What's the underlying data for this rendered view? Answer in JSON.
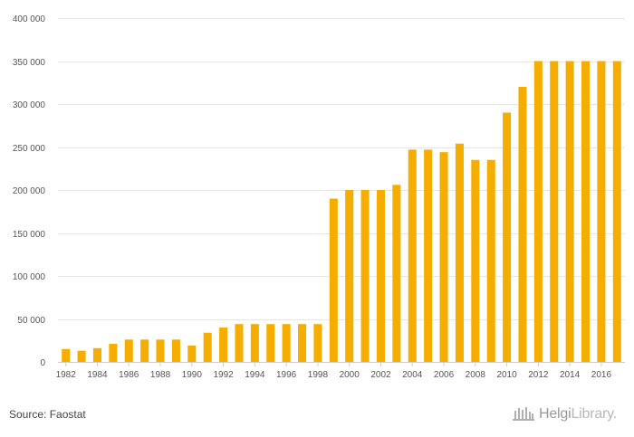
{
  "chart_data": {
    "type": "bar",
    "title": "",
    "xlabel": "",
    "ylabel": "",
    "ylim": [
      0,
      400000
    ],
    "yticks": [
      0,
      50000,
      100000,
      150000,
      200000,
      250000,
      300000,
      350000,
      400000
    ],
    "ytick_labels": [
      "0",
      "50 000",
      "100 000",
      "150 000",
      "200 000",
      "250 000",
      "300 000",
      "350 000",
      "400 000"
    ],
    "categories": [
      "1982",
      "1983",
      "1984",
      "1985",
      "1986",
      "1987",
      "1988",
      "1989",
      "1990",
      "1991",
      "1992",
      "1993",
      "1994",
      "1995",
      "1996",
      "1997",
      "1998",
      "1999",
      "2000",
      "2001",
      "2002",
      "2003",
      "2004",
      "2005",
      "2006",
      "2007",
      "2008",
      "2009",
      "2010",
      "2011",
      "2012",
      "2013",
      "2014",
      "2015",
      "2016",
      "2017"
    ],
    "xtick_labels": [
      "1982",
      "1984",
      "1986",
      "1988",
      "1990",
      "1992",
      "1994",
      "1996",
      "1998",
      "2000",
      "2002",
      "2004",
      "2006",
      "2008",
      "2010",
      "2012",
      "2014",
      "2016"
    ],
    "values": [
      15000,
      13000,
      16000,
      21000,
      26000,
      26000,
      26000,
      26000,
      19000,
      34000,
      40000,
      44000,
      44000,
      44000,
      44000,
      44000,
      44000,
      190000,
      200000,
      200000,
      200000,
      206000,
      247000,
      247000,
      244000,
      254000,
      235000,
      235000,
      290000,
      320000,
      350000,
      350000,
      350000,
      350000,
      350000,
      350000
    ],
    "bar_color": "#f5ad00",
    "grid": true
  },
  "footer": {
    "source": "Source: Faostat",
    "brand_part1": "Helgi",
    "brand_part2": "Library."
  }
}
